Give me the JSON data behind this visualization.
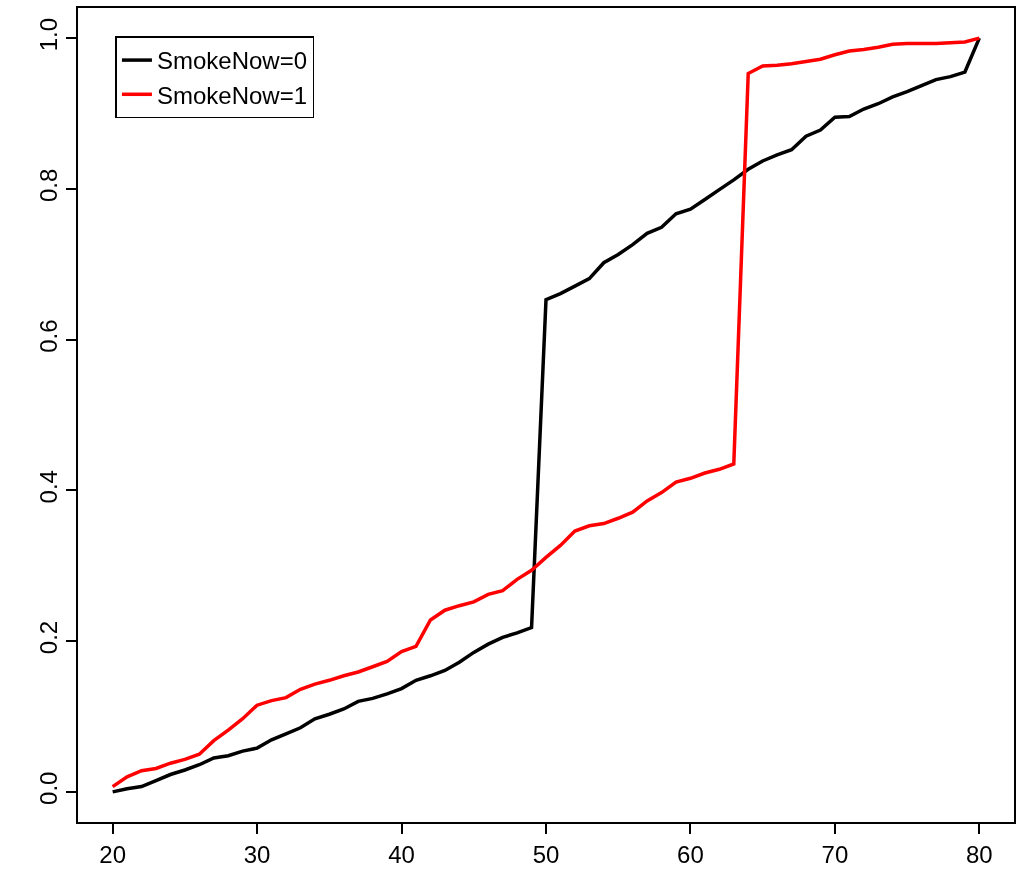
{
  "chart_data": {
    "type": "line",
    "x": [
      20,
      21,
      22,
      23,
      24,
      25,
      26,
      27,
      28,
      29,
      30,
      31,
      32,
      33,
      34,
      35,
      36,
      37,
      38,
      39,
      40,
      41,
      42,
      43,
      44,
      45,
      46,
      47,
      48,
      49,
      50,
      51,
      52,
      53,
      54,
      55,
      56,
      57,
      58,
      59,
      60,
      61,
      62,
      63,
      64,
      65,
      66,
      67,
      68,
      69,
      70,
      71,
      72,
      73,
      74,
      75,
      76,
      77,
      78,
      79,
      80
    ],
    "series": [
      {
        "name": "SmokeNow=0",
        "color": "#000000",
        "values": [
          0.0,
          0.004,
          0.007,
          0.015,
          0.023,
          0.029,
          0.036,
          0.045,
          0.048,
          0.054,
          0.058,
          0.069,
          0.077,
          0.085,
          0.097,
          0.103,
          0.11,
          0.12,
          0.124,
          0.13,
          0.137,
          0.148,
          0.154,
          0.161,
          0.172,
          0.185,
          0.196,
          0.205,
          0.211,
          0.218,
          0.653,
          0.661,
          0.671,
          0.681,
          0.702,
          0.713,
          0.726,
          0.741,
          0.749,
          0.767,
          0.773,
          0.786,
          0.799,
          0.812,
          0.826,
          0.837,
          0.845,
          0.852,
          0.87,
          0.878,
          0.895,
          0.896,
          0.906,
          0.913,
          0.922,
          0.929,
          0.937,
          0.945,
          0.949,
          0.955,
          1.0
        ]
      },
      {
        "name": "SmokeNow=1",
        "color": "#ff0000",
        "values": [
          0.007,
          0.02,
          0.028,
          0.031,
          0.038,
          0.043,
          0.05,
          0.068,
          0.082,
          0.097,
          0.115,
          0.121,
          0.125,
          0.136,
          0.143,
          0.148,
          0.154,
          0.159,
          0.166,
          0.173,
          0.186,
          0.193,
          0.228,
          0.241,
          0.247,
          0.252,
          0.262,
          0.267,
          0.282,
          0.294,
          0.311,
          0.327,
          0.346,
          0.353,
          0.356,
          0.363,
          0.371,
          0.386,
          0.397,
          0.411,
          0.416,
          0.423,
          0.428,
          0.435,
          0.953,
          0.963,
          0.964,
          0.966,
          0.969,
          0.972,
          0.978,
          0.983,
          0.985,
          0.988,
          0.992,
          0.993,
          0.993,
          0.993,
          0.994,
          0.995,
          1.0
        ]
      }
    ],
    "xlim": [
      17.6,
      82.4
    ],
    "xticks": [
      20,
      30,
      40,
      50,
      60,
      70,
      80
    ],
    "ylim": [
      -0.04,
      1.04
    ],
    "yticks": [
      {
        "value": 0,
        "label": "0.0"
      },
      {
        "value": 0.2,
        "label": "0.2"
      },
      {
        "value": 0.4,
        "label": "0.4"
      },
      {
        "value": 0.6,
        "label": "0.6"
      },
      {
        "value": 0.8,
        "label": "0.8"
      },
      {
        "value": 1,
        "label": "1.0"
      }
    ],
    "legend": "top left",
    "marker": "none",
    "line_style": "solid"
  }
}
